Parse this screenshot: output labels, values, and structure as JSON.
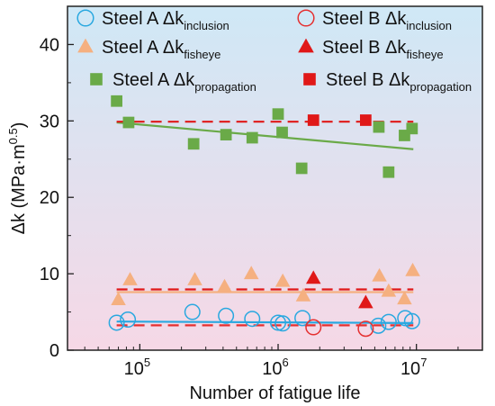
{
  "chart_data": {
    "type": "scatter",
    "xlabel": "Number of fatigue life",
    "ylabel_base": "Δk (MPa·m",
    "ylabel_sup": "0.5",
    "ylabel_close": ")",
    "xscale": "log",
    "xlim": [
      30000,
      30000000
    ],
    "ylim": [
      0,
      45
    ],
    "x_ticks": [
      {
        "value": 100000,
        "base": "10",
        "exp": "5"
      },
      {
        "value": 1000000,
        "base": "10",
        "exp": "6"
      },
      {
        "value": 10000000,
        "base": "10",
        "exp": "7"
      }
    ],
    "y_ticks": [
      {
        "value": 0,
        "label": "0"
      },
      {
        "value": 10,
        "label": "10"
      },
      {
        "value": 20,
        "label": "20"
      },
      {
        "value": 30,
        "label": "30"
      },
      {
        "value": 40,
        "label": "40"
      }
    ],
    "background_gradient": [
      "#cfe8f6",
      "#f6d8e6"
    ],
    "legend_position": "top",
    "series": [
      {
        "id": "a-inclusion",
        "label_main": "Steel A Δk",
        "label_sub": "inclusion",
        "marker": "circle-open",
        "color": "#29a8e0",
        "points": [
          [
            68000,
            3.6
          ],
          [
            82000,
            4.0
          ],
          [
            240000,
            5.0
          ],
          [
            420000,
            4.5
          ],
          [
            650000,
            4.1
          ],
          [
            1000000,
            3.6
          ],
          [
            1080000,
            3.5
          ],
          [
            1500000,
            4.2
          ],
          [
            5300000,
            3.2
          ],
          [
            6300000,
            3.7
          ],
          [
            8300000,
            4.2
          ],
          [
            9300000,
            3.8
          ]
        ],
        "fit": {
          "x": [
            68000,
            9500000
          ],
          "y": [
            3.75,
            3.55
          ],
          "style": "solid"
        }
      },
      {
        "id": "a-fisheye",
        "label_main": "Steel A Δk",
        "label_sub": "fisheye",
        "marker": "triangle-up",
        "color": "#f5b080",
        "points": [
          [
            70000,
            6.6
          ],
          [
            85000,
            9.2
          ],
          [
            250000,
            9.2
          ],
          [
            410000,
            8.3
          ],
          [
            640000,
            10.0
          ],
          [
            1080000,
            9.0
          ],
          [
            1520000,
            7.1
          ],
          [
            5400000,
            9.7
          ],
          [
            6300000,
            7.7
          ],
          [
            8200000,
            6.7
          ],
          [
            9400000,
            10.4
          ]
        ],
        "fit": {
          "x": [
            68000,
            9500000
          ],
          "y": [
            7.6,
            7.6
          ],
          "style": "solid"
        }
      },
      {
        "id": "a-propagation",
        "label_main": "Steel A Δk",
        "label_sub": "propagation",
        "marker": "square",
        "color": "#6aaa48",
        "points": [
          [
            68000,
            32.6
          ],
          [
            83000,
            29.8
          ],
          [
            245000,
            27.0
          ],
          [
            420000,
            28.2
          ],
          [
            650000,
            27.8
          ],
          [
            1000000,
            30.9
          ],
          [
            1070000,
            28.5
          ],
          [
            1480000,
            23.8
          ],
          [
            5350000,
            29.2
          ],
          [
            6300000,
            23.3
          ],
          [
            8200000,
            28.1
          ],
          [
            9300000,
            29.0
          ]
        ],
        "fit": {
          "x": [
            68000,
            9500000
          ],
          "y": [
            29.8,
            26.3
          ],
          "style": "solid"
        }
      },
      {
        "id": "b-inclusion",
        "label_main": "Steel B Δk",
        "label_sub": "inclusion",
        "marker": "circle-open",
        "color": "#e53030",
        "points": [
          [
            1800000,
            3.0
          ],
          [
            4300000,
            2.8
          ]
        ],
        "fit": {
          "x": [
            68000,
            9500000
          ],
          "y": [
            3.25,
            3.25
          ],
          "style": "dashed"
        }
      },
      {
        "id": "b-fisheye",
        "label_main": "Steel B Δk",
        "label_sub": "fisheye",
        "marker": "triangle-up",
        "color": "#e01818",
        "points": [
          [
            1800000,
            9.4
          ],
          [
            4300000,
            6.2
          ]
        ],
        "fit": {
          "x": [
            68000,
            9500000
          ],
          "y": [
            7.95,
            7.95
          ],
          "style": "dashed"
        }
      },
      {
        "id": "b-propagation",
        "label_main": "Steel B Δk",
        "label_sub": "propagation",
        "marker": "square",
        "color": "#e01818",
        "points": [
          [
            1800000,
            30.1
          ],
          [
            4300000,
            30.1
          ]
        ],
        "fit": {
          "x": [
            68000,
            9500000
          ],
          "y": [
            29.9,
            29.9
          ],
          "style": "dashed"
        }
      }
    ]
  }
}
